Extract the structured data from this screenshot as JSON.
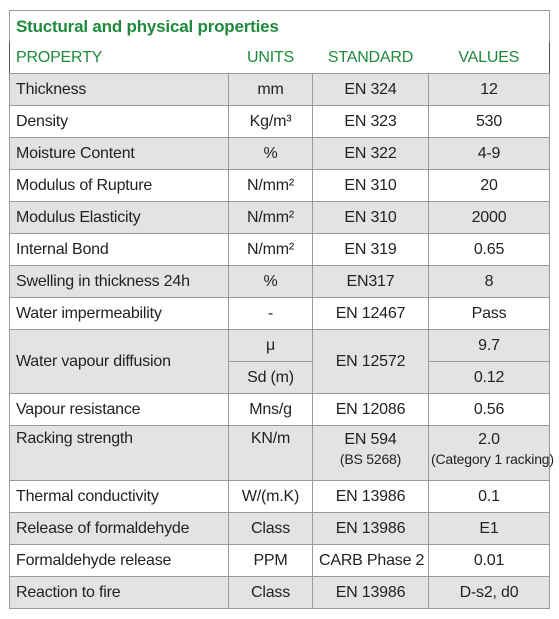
{
  "title": "Stuctural and physical properties",
  "header": [
    "PROPERTY",
    "UNITS",
    "STANDARD",
    "VALUES"
  ],
  "rows": [
    [
      "Thickness",
      "mm",
      "EN 324",
      "12"
    ],
    [
      "Density",
      "Kg/m³",
      "EN 323",
      "530"
    ],
    [
      "Moisture Content",
      "%",
      "EN 322",
      "4-9"
    ],
    [
      "Modulus of Rupture",
      "N/mm²",
      "EN 310",
      "20"
    ],
    [
      "Modulus Elasticity",
      "N/mm²",
      "EN 310",
      "2000"
    ],
    [
      "Internal Bond",
      "N/mm²",
      "EN 319",
      "0.65"
    ],
    [
      "Swelling in thickness 24h",
      "%",
      "EN317",
      "8"
    ],
    [
      "Water impermeability",
      "-",
      "EN 12467",
      "Pass"
    ],
    [
      "Water vapour diffusion",
      [
        "μ",
        "Sd (m)"
      ],
      "EN 12572",
      [
        "9.7",
        "0.12"
      ]
    ],
    [
      "Vapour resistance",
      "Mns/g",
      "EN 12086",
      "0.56"
    ],
    [
      "Racking strength",
      "KN/m",
      [
        "EN 594",
        "(BS 5268)"
      ],
      [
        "2.0",
        "(Category 1 racking)"
      ]
    ],
    [
      "Thermal conductivity",
      "W/(m.K)",
      "EN 13986",
      "0.1"
    ],
    [
      "Release of formaldehyde",
      "Class",
      "EN 13986",
      "E1"
    ],
    [
      "Formaldehyde release",
      "PPM",
      "CARB Phase 2",
      "0.01"
    ],
    [
      "Reaction to fire",
      "Class",
      "EN 13986",
      "D-s2, d0"
    ]
  ]
}
